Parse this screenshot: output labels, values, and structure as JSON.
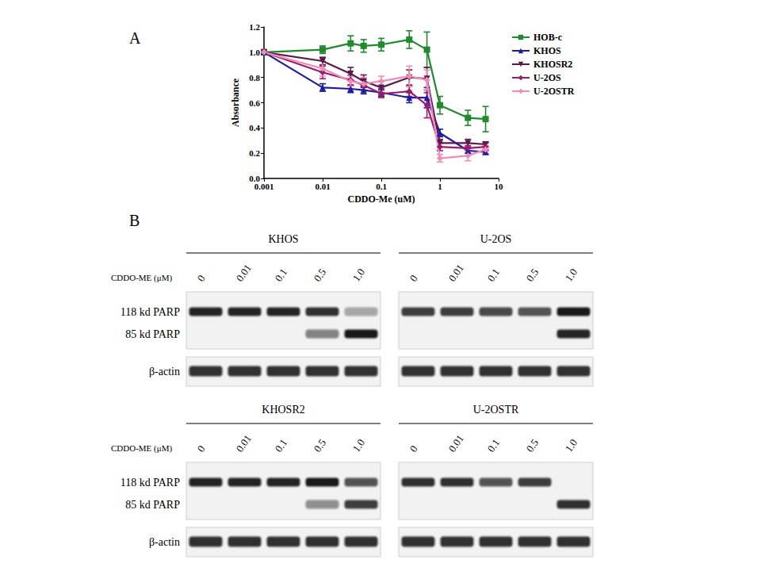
{
  "chart_data": {
    "type": "line",
    "panel_label": "A",
    "x_label": "CDDO-Me (uM)",
    "y_label": "Absorbance",
    "log": "x",
    "grid": false,
    "legend": "right",
    "xlim": [
      0.001,
      10
    ],
    "xticks": [
      0.001,
      0.01,
      0.1,
      1,
      10
    ],
    "ylim": [
      0,
      1.2
    ],
    "yticks": [
      {
        "value": 0,
        "label": "0.0"
      },
      0.2,
      0.4,
      0.6,
      0.8,
      {
        "value": 1,
        "label": "1.0"
      },
      1.2
    ],
    "x": [
      0.001,
      0.01,
      0.03,
      0.05,
      0.1,
      0.3,
      0.6,
      1,
      3,
      6
    ],
    "series": [
      {
        "name": "HOB-c",
        "color": "#1f8a2e",
        "marker": "square",
        "values": [
          1.0,
          1.02,
          1.07,
          1.05,
          1.06,
          1.1,
          1.02,
          0.58,
          0.48,
          0.47
        ],
        "errors": [
          0,
          0.03,
          0.06,
          0.05,
          0.05,
          0.07,
          0.14,
          0.07,
          0.06,
          0.1
        ]
      },
      {
        "name": "KHOS",
        "color": "#1c1ca0",
        "marker": "triangle",
        "values": [
          1.0,
          0.72,
          0.71,
          0.7,
          0.68,
          0.64,
          0.64,
          0.36,
          0.22,
          0.21
        ],
        "errors": [
          0,
          0.03,
          0.03,
          0.03,
          0.03,
          0.04,
          0.08,
          0.03,
          0.02,
          0.02
        ]
      },
      {
        "name": "KHOSR2",
        "color": "#5a1a4c",
        "marker": "triangle-down",
        "values": [
          1.0,
          0.93,
          0.83,
          0.77,
          0.72,
          0.8,
          0.79,
          0.28,
          0.28,
          0.27
        ],
        "errors": [
          0,
          0.03,
          0.05,
          0.05,
          0.05,
          0.06,
          0.09,
          0.03,
          0.03,
          0.02
        ]
      },
      {
        "name": "U-2OS",
        "color": "#9e1a6c",
        "marker": "diamond",
        "values": [
          1.0,
          0.84,
          0.78,
          0.74,
          0.67,
          0.69,
          0.58,
          0.25,
          0.24,
          0.25
        ],
        "errors": [
          0,
          0.05,
          0.04,
          0.04,
          0.03,
          0.04,
          0.1,
          0.03,
          0.02,
          0.03
        ]
      },
      {
        "name": "U-2OSTR",
        "color": "#f08cb6",
        "marker": "diamond",
        "values": [
          1.0,
          0.87,
          0.77,
          0.75,
          0.77,
          0.81,
          0.78,
          0.16,
          0.18,
          0.23
        ],
        "errors": [
          0,
          0.06,
          0.04,
          0.05,
          0.04,
          0.08,
          0.08,
          0.03,
          0.04,
          0.03
        ]
      }
    ]
  },
  "blots": {
    "panel_label": "B",
    "dose_label": "CDDO-ME (μM)",
    "doses": [
      "0",
      "0.01",
      "0.1",
      "0.5",
      "1.0"
    ],
    "rows": [
      "118 kd PARP",
      "85 kd PARP",
      "β-actin"
    ],
    "panels": [
      {
        "title": "KHOS",
        "bands": [
          [
            0.9,
            0.9,
            0.9,
            0.85,
            0.35
          ],
          [
            0,
            0,
            0,
            0.5,
            0.95
          ],
          [
            0.85,
            0.85,
            0.85,
            0.85,
            0.85
          ]
        ]
      },
      {
        "title": "U-2OS",
        "bands": [
          [
            0.8,
            0.8,
            0.75,
            0.7,
            0.95
          ],
          [
            0,
            0,
            0,
            0,
            0.9
          ],
          [
            0.85,
            0.85,
            0.85,
            0.85,
            0.85
          ]
        ]
      },
      {
        "title": "KHOSR2",
        "bands": [
          [
            0.9,
            0.9,
            0.9,
            0.95,
            0.7
          ],
          [
            0,
            0,
            0,
            0.45,
            0.8
          ],
          [
            0.85,
            0.85,
            0.85,
            0.85,
            0.85
          ]
        ]
      },
      {
        "title": "U-2OSTR",
        "bands": [
          [
            0.85,
            0.85,
            0.7,
            0.8,
            0
          ],
          [
            0,
            0,
            0,
            0,
            0.85
          ],
          [
            0.85,
            0.85,
            0.85,
            0.85,
            0.85
          ]
        ]
      }
    ]
  }
}
